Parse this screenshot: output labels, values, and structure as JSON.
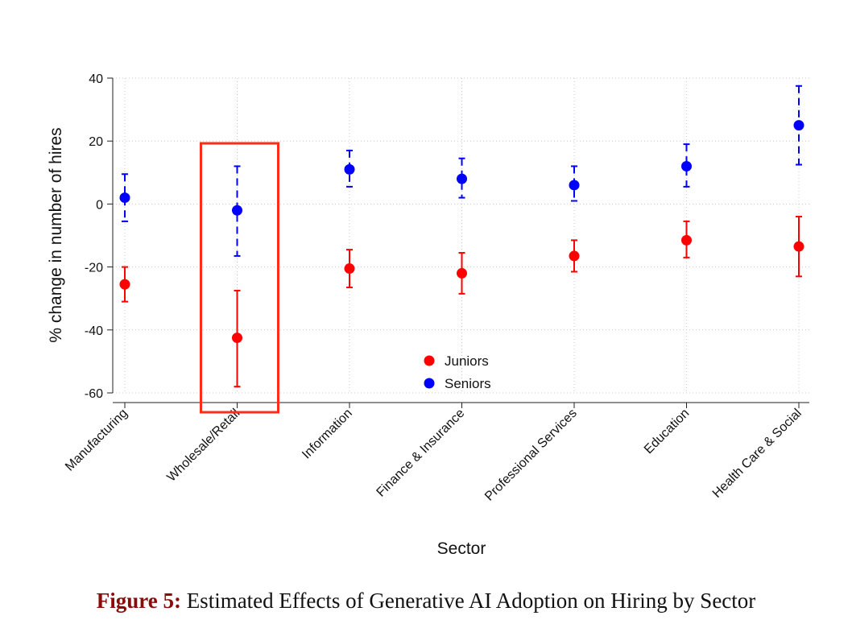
{
  "caption": {
    "label": "Figure 5:",
    "text": "Estimated Effects of Generative AI Adoption on Hiring by Sector"
  },
  "chart_data": {
    "type": "scatter",
    "title": "",
    "xlabel": "Sector",
    "ylabel": "% change in number of hires",
    "ylim": [
      -60,
      40
    ],
    "yticks": [
      40,
      20,
      0,
      -20,
      -40,
      -60
    ],
    "grid": true,
    "legend_placement": "bottom-center",
    "categories": [
      "Manufacturing",
      "Wholesale/Retail",
      "Information",
      "Finance & Insurance",
      "Professional Services",
      "Education",
      "Health Care & Social"
    ],
    "series": [
      {
        "name": "Juniors",
        "color": "#ff0000",
        "error_style": "solid",
        "values": [
          -25.5,
          -42.5,
          -20.5,
          -22,
          -16.5,
          -11.5,
          -13.5
        ],
        "ci_low": [
          -31,
          -58,
          -26.5,
          -28.5,
          -21.5,
          -17,
          -23
        ],
        "ci_high": [
          -20,
          -27.5,
          -14.5,
          -15.5,
          -11.5,
          -5.5,
          -4
        ]
      },
      {
        "name": "Seniors",
        "color": "#0000ff",
        "error_style": "dashed",
        "values": [
          2,
          -2,
          11,
          8,
          6,
          12,
          25
        ],
        "ci_low": [
          -5.5,
          -16.5,
          5.5,
          2,
          1,
          5.5,
          12.5
        ],
        "ci_high": [
          9.5,
          12,
          17,
          14.5,
          12,
          19,
          37.5
        ]
      }
    ],
    "highlight": {
      "category": "Wholesale/Retail",
      "color": "#ff2b1c"
    }
  }
}
